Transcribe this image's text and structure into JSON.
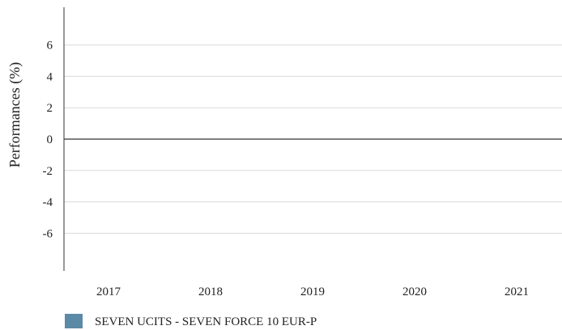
{
  "chart_data": {
    "type": "bar",
    "title": "",
    "xlabel": "",
    "ylabel": "Performances (%)",
    "categories": [
      "2017",
      "2018",
      "2019",
      "2020",
      "2021"
    ],
    "series": [
      {
        "name": "SEVEN UCITS - SEVEN FORCE 10 EUR-P",
        "values": [
          null,
          null,
          null,
          null,
          null
        ],
        "color": "#5b8aa6"
      }
    ],
    "yticks": [
      6,
      4,
      2,
      0,
      -2,
      -4,
      -6
    ],
    "yticks_labels": [
      "6",
      "4",
      "2",
      "0",
      "-2",
      "-4",
      "-6"
    ],
    "ylim": [
      -8.4,
      8.4
    ],
    "grid": true,
    "legend_position": "bottom-left"
  }
}
